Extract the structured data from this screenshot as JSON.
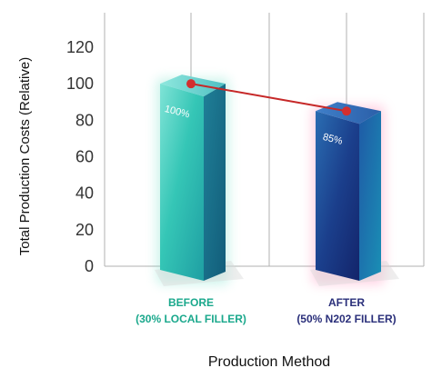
{
  "chart_data": {
    "type": "bar",
    "ylabel": "Total Production Costs (Relative)",
    "xlabel": "Production Method",
    "ylim": [
      0,
      120
    ],
    "y_ticks": [
      0,
      20,
      40,
      60,
      80,
      100,
      120
    ],
    "categories": [
      {
        "line1": "BEFORE",
        "line2": "(30% LOCAL FILLER)"
      },
      {
        "line1": "AFTER",
        "line2": "(50% N202 FILLER)"
      }
    ],
    "values": [
      100,
      85
    ],
    "data_labels": [
      "100%",
      "85%"
    ],
    "grid": "vertical lines only",
    "trend_line": true,
    "colors": {
      "before_bar": "#2fc4b2",
      "after_bar": "#1c3f8a",
      "before_label": "#1aa88c",
      "after_label": "#2a2f7a",
      "trend_line": "#c62828",
      "trend_marker": "#d32f2f",
      "grid": "#b0b0b0"
    }
  }
}
